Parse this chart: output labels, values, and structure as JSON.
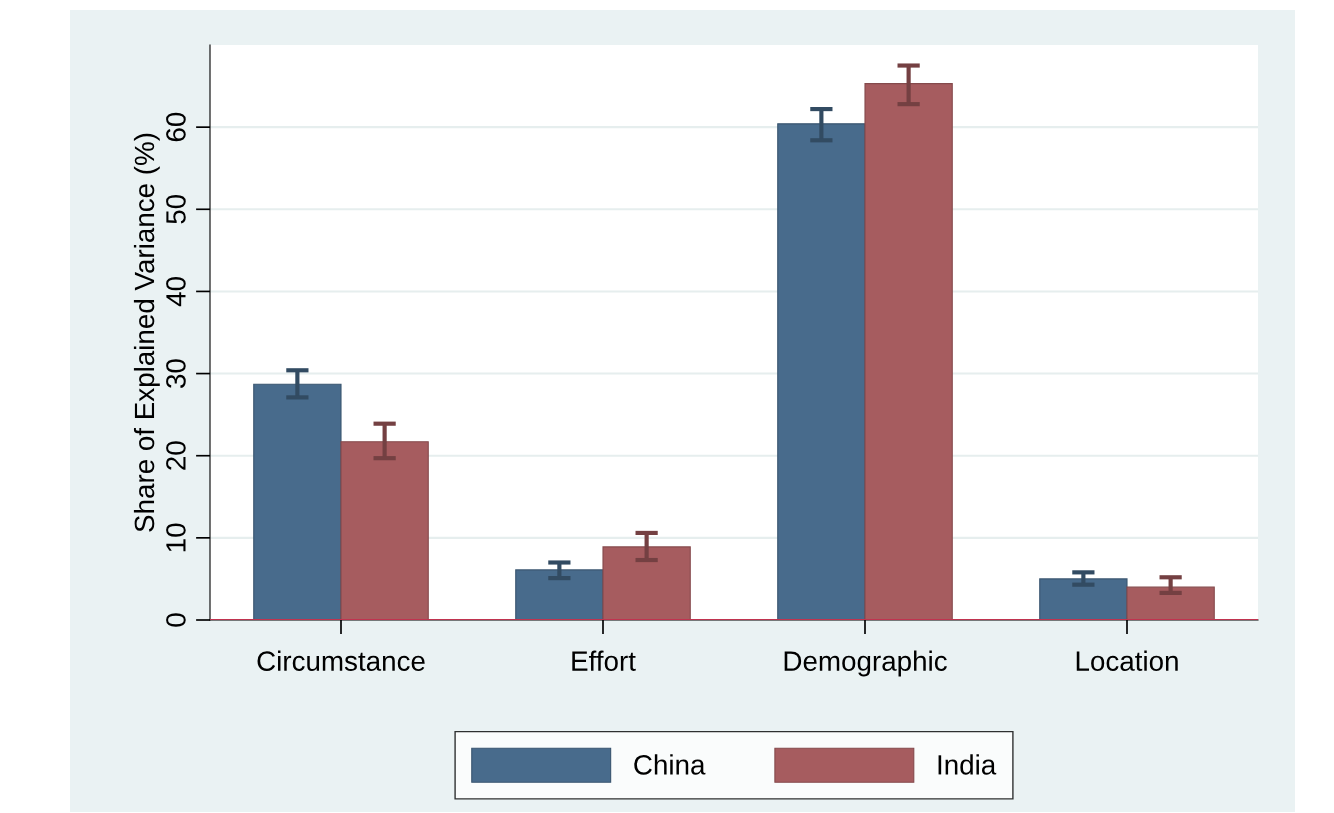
{
  "chart_data": {
    "type": "bar",
    "ylabel": "Share of Explained Variance (%)",
    "categories": [
      "Circumstance",
      "Effort",
      "Demographic",
      "Location"
    ],
    "series": [
      {
        "name": "China",
        "color": "#486b8c",
        "values": [
          28.7,
          6.1,
          60.4,
          5.0
        ],
        "errors": [
          [
            27.1,
            30.4
          ],
          [
            5.1,
            7.0
          ],
          [
            58.4,
            62.2
          ],
          [
            4.3,
            5.8
          ]
        ]
      },
      {
        "name": "India",
        "color": "#a65c5f",
        "values": [
          21.7,
          8.9,
          65.3,
          4.0
        ],
        "errors": [
          [
            19.7,
            23.9
          ],
          [
            7.3,
            10.6
          ],
          [
            62.8,
            67.5
          ],
          [
            3.3,
            5.2
          ]
        ]
      }
    ],
    "ylim": [
      0,
      70
    ],
    "yticks": [
      0,
      10,
      20,
      30,
      40,
      50,
      60
    ],
    "grid": "y",
    "legend": "bottom",
    "ref_lines": [
      {
        "axis": "y",
        "value": 0,
        "color": "#c0334f"
      }
    ]
  }
}
